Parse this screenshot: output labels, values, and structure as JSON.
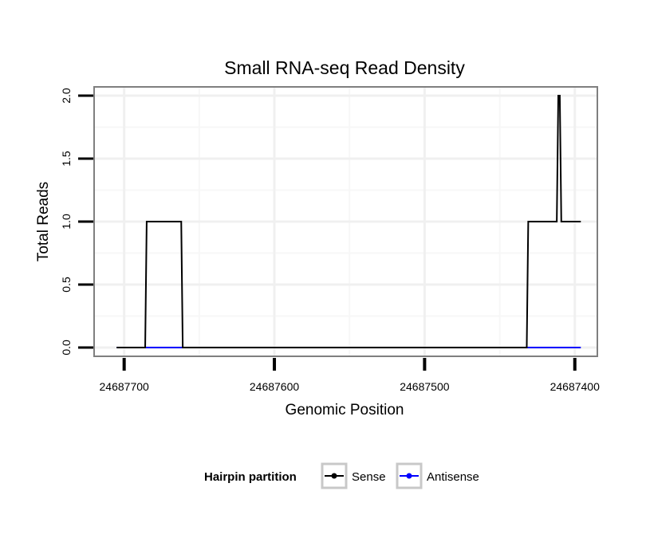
{
  "chart_data": {
    "type": "line",
    "title": "Small RNA-seq Read Density",
    "xlabel": "Genomic Position",
    "ylabel": "Total Reads",
    "x_reversed": true,
    "xlim": [
      24687720,
      24687385
    ],
    "ylim": [
      -0.07,
      2.07
    ],
    "x_ticks": [
      24687700,
      24687600,
      24687500,
      24687400
    ],
    "x_tick_labels": [
      "24687700",
      "24687600",
      "24687500",
      "24687400"
    ],
    "y_ticks": [
      0,
      0.5,
      1,
      1.5,
      2
    ],
    "y_tick_labels": [
      "0.0",
      "0.5",
      "1.0",
      "1.5",
      "2.0"
    ],
    "x_minor_ticks": [
      24687650,
      24687550,
      24687450
    ],
    "y_minor_ticks": [
      0.25,
      0.75,
      1.25,
      1.75
    ],
    "grid": true,
    "series": [
      {
        "name": "Sense",
        "color": "#000000",
        "x": [
          24687705,
          24687686,
          24687685,
          24687662,
          24687661,
          24687432,
          24687431,
          24687412,
          24687411,
          24687410,
          24687409,
          24687396
        ],
        "y": [
          0,
          0,
          1,
          1,
          0,
          0,
          1,
          1,
          2,
          2,
          1,
          1
        ]
      },
      {
        "name": "Antisense",
        "color": "#0000ff",
        "x": [
          24687705,
          24687396
        ],
        "y": [
          0,
          0
        ]
      }
    ],
    "legend": {
      "title": "Hairpin partition",
      "position": "bottom",
      "entries": [
        "Sense",
        "Antisense"
      ]
    }
  }
}
